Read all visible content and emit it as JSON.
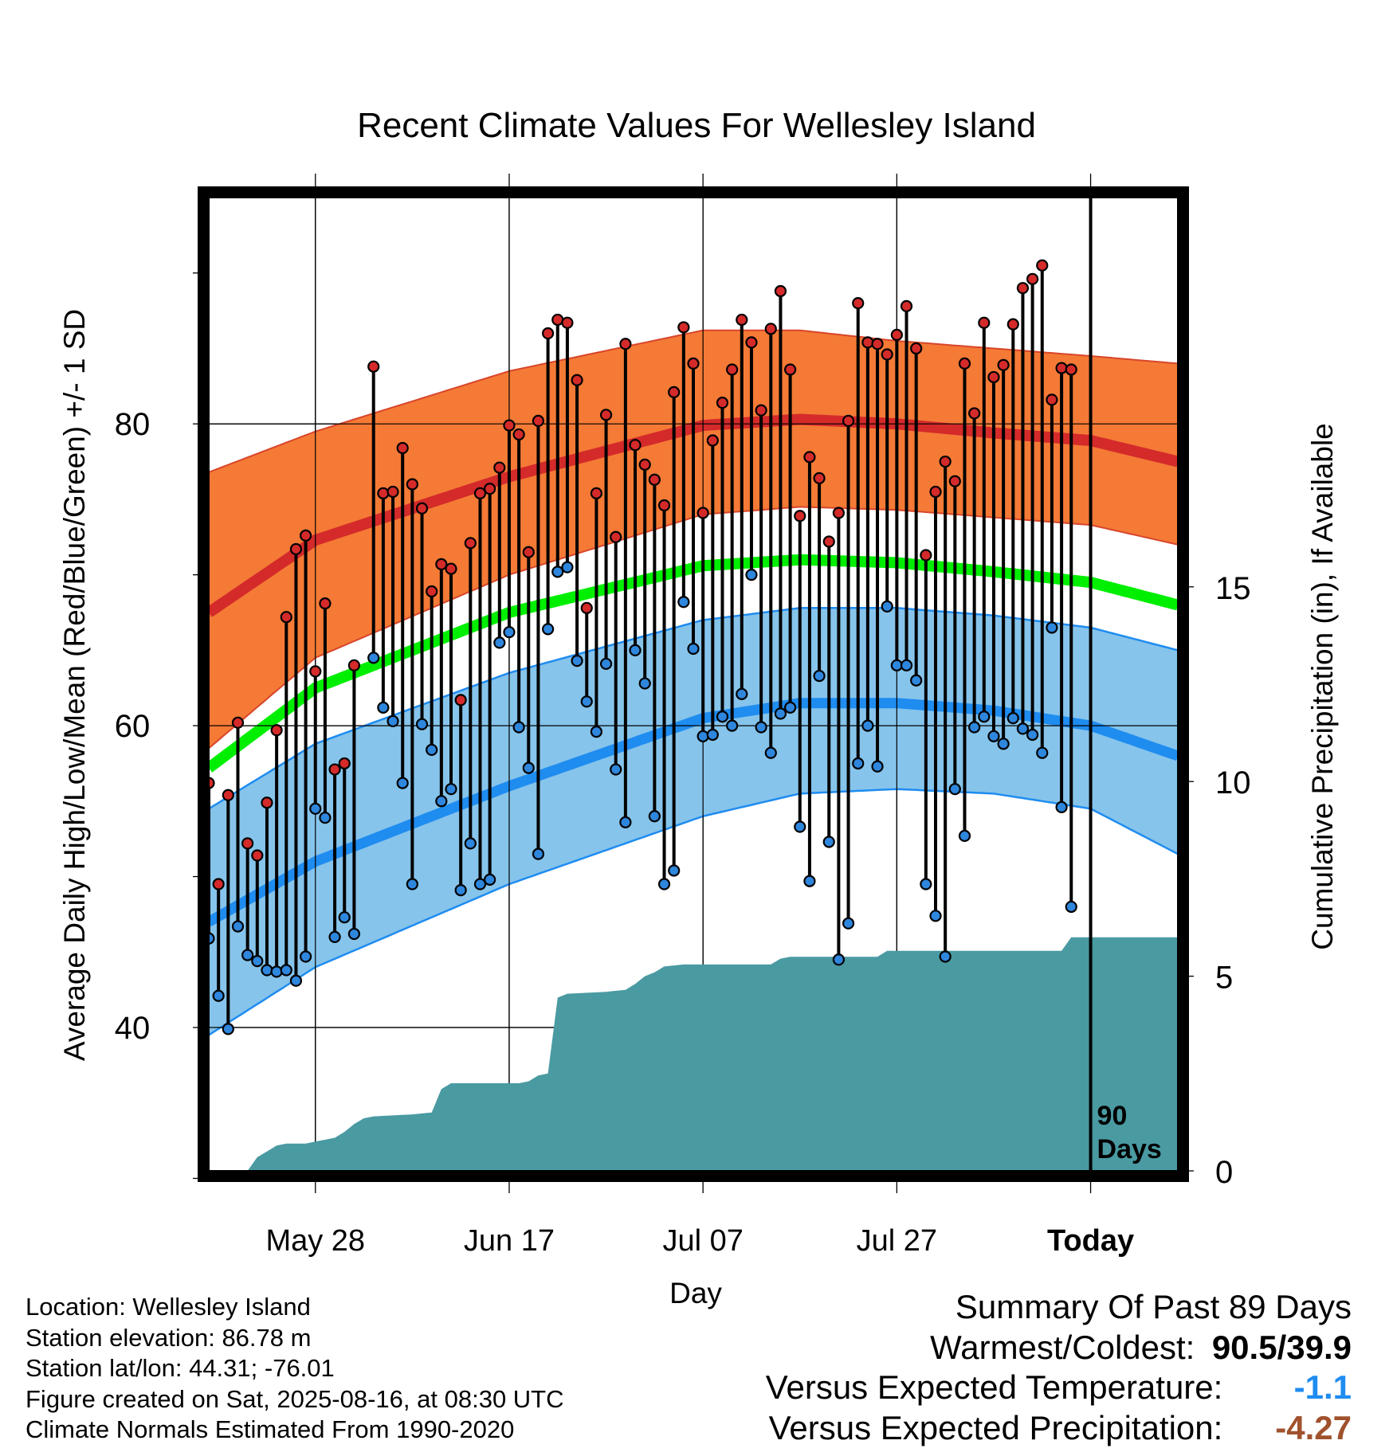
{
  "chart_data": {
    "type": "line",
    "title": "Recent Climate Values For Wellesley Island",
    "xlabel": "Day",
    "ylabel": "Average Daily High/Low/Mean (Red/Blue/Green) +/- 1 SD",
    "y2label": "Cumulative Precipitation (in), If Available",
    "x_ticks": [
      {
        "day": 12,
        "label": "May 28"
      },
      {
        "day": 32,
        "label": "Jun 17"
      },
      {
        "day": 52,
        "label": "Jul 07"
      },
      {
        "day": 72,
        "label": "Jul 27"
      },
      {
        "day": 92,
        "label": "Today"
      }
    ],
    "x_range": [
      1,
      101
    ],
    "y_range": [
      30.5,
      95
    ],
    "y_ticks": [
      "40",
      "60",
      "80"
    ],
    "y_grid": [
      40,
      60,
      80
    ],
    "y_minor_ticks": [
      30,
      50,
      70,
      90
    ],
    "precip_range": [
      0,
      25
    ],
    "precip_ticks": [
      "0",
      "5",
      "10",
      "15"
    ],
    "today_day": 92,
    "today_label": [
      "90",
      "Days"
    ],
    "colors": {
      "high": "#d42a2a",
      "high_band": "#f47a36",
      "low": "#1f8cf0",
      "low_band": "#86c4eb",
      "mean": "#00ee00",
      "precip": "#4a9aa2",
      "high_dot": "#d42a2a",
      "low_dot": "#2e86dd"
    },
    "normals": {
      "high_mean": [
        [
          1,
          67.5
        ],
        [
          12,
          72.3
        ],
        [
          32,
          76.5
        ],
        [
          52,
          79.9
        ],
        [
          62,
          80.3
        ],
        [
          72,
          80.0
        ],
        [
          82,
          79.4
        ],
        [
          92,
          78.9
        ],
        [
          101,
          77.5
        ]
      ],
      "high_upper": [
        [
          1,
          76.8
        ],
        [
          12,
          79.5
        ],
        [
          32,
          83.5
        ],
        [
          52,
          86.2
        ],
        [
          62,
          86.2
        ],
        [
          72,
          85.5
        ],
        [
          82,
          85.0
        ],
        [
          92,
          84.5
        ],
        [
          101,
          84.0
        ]
      ],
      "high_lower": [
        [
          1,
          58.5
        ],
        [
          12,
          64.5
        ],
        [
          32,
          70.0
        ],
        [
          52,
          74.0
        ],
        [
          62,
          74.5
        ],
        [
          72,
          74.3
        ],
        [
          82,
          73.8
        ],
        [
          92,
          73.3
        ],
        [
          101,
          72.0
        ]
      ],
      "mean": [
        [
          1,
          57.2
        ],
        [
          12,
          62.5
        ],
        [
          32,
          67.5
        ],
        [
          52,
          70.6
        ],
        [
          62,
          71.0
        ],
        [
          72,
          70.8
        ],
        [
          82,
          70.2
        ],
        [
          92,
          69.5
        ],
        [
          101,
          68.0
        ]
      ],
      "low_mean": [
        [
          1,
          47.0
        ],
        [
          12,
          51.0
        ],
        [
          32,
          56.0
        ],
        [
          52,
          60.5
        ],
        [
          62,
          61.5
        ],
        [
          72,
          61.5
        ],
        [
          82,
          61.0
        ],
        [
          92,
          60.0
        ],
        [
          101,
          58.0
        ]
      ],
      "low_upper": [
        [
          1,
          54.5
        ],
        [
          12,
          58.8
        ],
        [
          32,
          63.5
        ],
        [
          52,
          67.0
        ],
        [
          62,
          67.8
        ],
        [
          72,
          67.8
        ],
        [
          82,
          67.3
        ],
        [
          92,
          66.5
        ],
        [
          101,
          65.0
        ]
      ],
      "low_lower": [
        [
          1,
          39.5
        ],
        [
          12,
          44.0
        ],
        [
          32,
          49.5
        ],
        [
          52,
          54.0
        ],
        [
          62,
          55.5
        ],
        [
          72,
          55.8
        ],
        [
          82,
          55.5
        ],
        [
          92,
          54.5
        ],
        [
          101,
          51.5
        ]
      ]
    },
    "highs": [
      56.2,
      49.5,
      55.4,
      60.2,
      52.2,
      51.4,
      54.9,
      59.7,
      67.2,
      71.7,
      72.6,
      63.6,
      68.1,
      57.1,
      57.5,
      64.0,
      null,
      83.8,
      75.4,
      75.5,
      78.4,
      76.0,
      74.4,
      68.9,
      70.7,
      70.4,
      61.7,
      72.1,
      75.4,
      75.7,
      77.1,
      79.9,
      79.3,
      71.5,
      80.2,
      86.0,
      86.9,
      86.7,
      82.9,
      67.8,
      75.4,
      80.6,
      72.5,
      85.3,
      78.6,
      77.3,
      76.3,
      74.6,
      82.1,
      86.4,
      84.0,
      74.1,
      78.9,
      81.4,
      83.6,
      86.9,
      85.4,
      80.9,
      86.3,
      88.8,
      83.6,
      73.9,
      77.8,
      76.4,
      72.2,
      74.1,
      80.2,
      88.0,
      85.4,
      85.3,
      84.6,
      85.9,
      87.8,
      85.0,
      71.3,
      75.5,
      77.5,
      76.2,
      84.0,
      80.7,
      86.7,
      83.1,
      83.9,
      86.6,
      89.0,
      89.6,
      90.5,
      81.6,
      83.7,
      83.6
    ],
    "lows": [
      45.9,
      42.1,
      39.9,
      46.7,
      44.8,
      44.4,
      43.8,
      43.7,
      43.8,
      43.1,
      44.7,
      54.5,
      53.9,
      46.0,
      47.3,
      46.2,
      null,
      64.5,
      61.2,
      60.3,
      56.2,
      49.5,
      60.1,
      58.4,
      55.0,
      55.8,
      49.1,
      52.2,
      49.5,
      49.8,
      65.5,
      66.2,
      59.9,
      57.2,
      51.5,
      66.4,
      70.2,
      70.5,
      64.3,
      61.6,
      59.6,
      64.1,
      57.1,
      53.6,
      65.0,
      62.8,
      54.0,
      49.5,
      50.4,
      68.2,
      65.1,
      59.3,
      59.4,
      60.6,
      60.0,
      62.1,
      70.0,
      59.9,
      58.2,
      60.8,
      61.2,
      53.3,
      49.7,
      63.3,
      52.3,
      44.5,
      46.9,
      57.5,
      60.0,
      57.3,
      67.9,
      64.0,
      64.0,
      63.0,
      49.5,
      47.4,
      44.7,
      55.8,
      52.7,
      59.9,
      60.6,
      59.3,
      58.8,
      60.5,
      59.8,
      59.4,
      58.2,
      66.5,
      54.6,
      48.0
    ],
    "precip_cumulative": [
      [
        1,
        0.0
      ],
      [
        5,
        0.0
      ],
      [
        6,
        0.35
      ],
      [
        7,
        0.5
      ],
      [
        8,
        0.65
      ],
      [
        9,
        0.7
      ],
      [
        11,
        0.7
      ],
      [
        12,
        0.75
      ],
      [
        13,
        0.8
      ],
      [
        14,
        0.85
      ],
      [
        15,
        1.0
      ],
      [
        16,
        1.2
      ],
      [
        17,
        1.35
      ],
      [
        18,
        1.4
      ],
      [
        22,
        1.45
      ],
      [
        24,
        1.5
      ],
      [
        25,
        2.1
      ],
      [
        26,
        2.25
      ],
      [
        33,
        2.25
      ],
      [
        34,
        2.3
      ],
      [
        35,
        2.45
      ],
      [
        36,
        2.5
      ],
      [
        37,
        4.45
      ],
      [
        38,
        4.55
      ],
      [
        42,
        4.6
      ],
      [
        44,
        4.65
      ],
      [
        45,
        4.8
      ],
      [
        46,
        5.0
      ],
      [
        47,
        5.1
      ],
      [
        48,
        5.25
      ],
      [
        50,
        5.3
      ],
      [
        59,
        5.3
      ],
      [
        60,
        5.45
      ],
      [
        61,
        5.5
      ],
      [
        70,
        5.5
      ],
      [
        71,
        5.65
      ],
      [
        82,
        5.65
      ],
      [
        89,
        5.65
      ],
      [
        90,
        6.0
      ],
      [
        101,
        6.0
      ]
    ]
  },
  "footer": {
    "location": "Location: Wellesley Island",
    "elevation": "Station elevation: 86.78 m",
    "latlon": "Station lat/lon: 44.31; -76.01",
    "created": "Figure created on Sat, 2025-08-16, at 08:30 UTC",
    "normals": "Climate Normals Estimated From 1990-2020"
  },
  "summary": {
    "title": "Summary Of Past 89 Days",
    "warm_cold_label": "Warmest/Coldest:",
    "warm_cold_value": "90.5/39.9",
    "temp_label": "Versus Expected Temperature:",
    "temp_value": "-1.1",
    "temp_color": "#1f8cf0",
    "precip_label": "Versus Expected Precipitation:",
    "precip_value": "-4.27",
    "precip_color": "#a0522d"
  }
}
